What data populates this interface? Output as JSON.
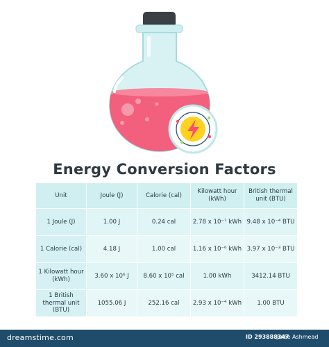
{
  "title": "Energy Conversion Factors",
  "table": {
    "headers": [
      "Unit",
      "Joule (J)",
      "Calorie (cal)",
      "Kilowatt hour (kWh)",
      "British thermal unit (BTU)"
    ],
    "rows": [
      [
        "1 Joule (J)",
        "1.00 J",
        "0.24 cal",
        "2.78 x 10⁻⁷ kWh",
        "9.48 x 10⁻⁴ BTU"
      ],
      [
        "1 Calorie (cal)",
        "4.18 J",
        "1.00 cal",
        "1.16 x 10⁻⁶ kWh",
        "3.97 x 10⁻³ BTU"
      ],
      [
        "1 Kilowatt hour (kWh)",
        "3.60 x 10⁶ J",
        "8.60 x 10⁵ cal",
        "1.00 kWh",
        "3412.14 BTU"
      ],
      [
        "1 British thermal unit (BTU)",
        "1055.06 J",
        "252.16 cal",
        "2.93 x 10⁻⁴ kWh",
        "1.00 BTU"
      ]
    ]
  },
  "footer": {
    "brand": "dreamstime.com",
    "image_id": "ID 293888347",
    "author": "Julee Ashmead"
  },
  "illustration": {
    "icon": "lightning-bolt-icon",
    "colors": {
      "liquid": "#f2607e",
      "glass": "#bfe6ea",
      "cap": "#3a3f44",
      "badge": "#ffd21f",
      "bolt": "#ff4d6d",
      "accent": "#1f4c6b"
    }
  }
}
